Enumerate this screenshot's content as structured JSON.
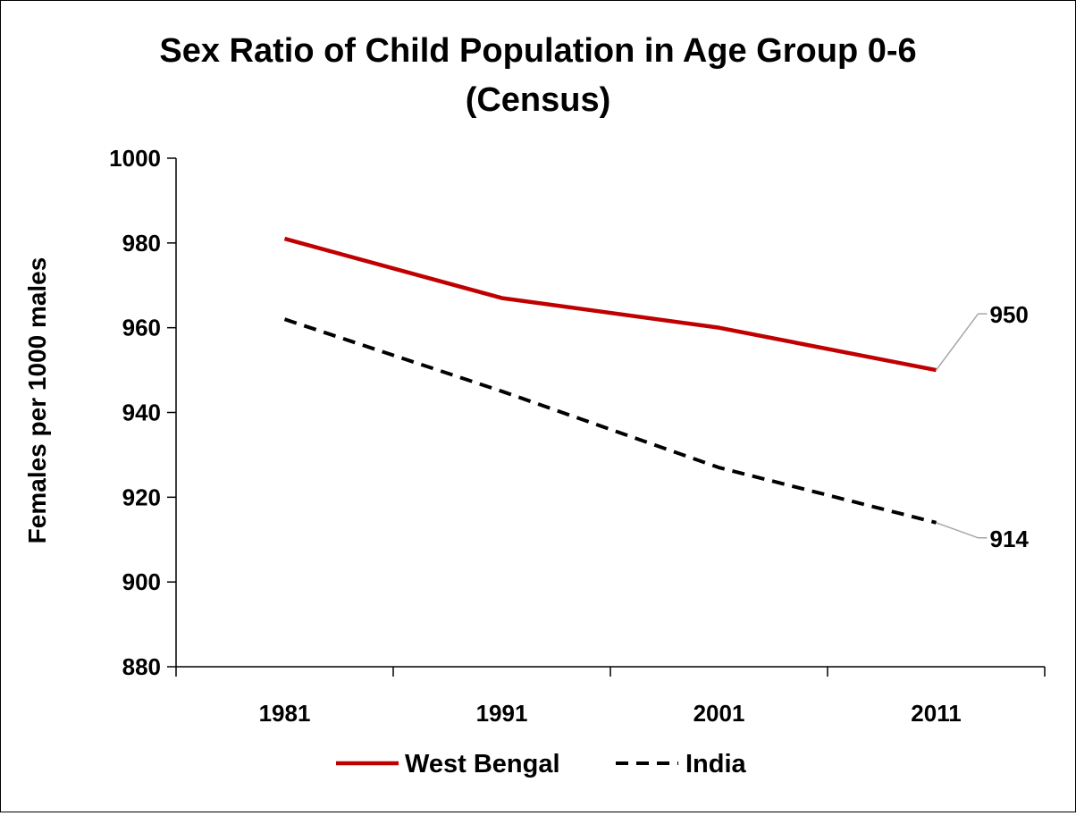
{
  "chart_data": {
    "type": "line",
    "title_line1": "Sex Ratio of Child Population in Age Group 0-6",
    "title_line2": "(Census)",
    "xlabel": "",
    "ylabel": "Females per 1000 males",
    "categories": [
      "1981",
      "1991",
      "2001",
      "2011"
    ],
    "ylim": [
      880,
      1000
    ],
    "yticks": [
      "880",
      "900",
      "920",
      "940",
      "960",
      "980",
      "1000"
    ],
    "grid": false,
    "legend_position": "bottom",
    "series": [
      {
        "name": "West Bengal",
        "values": [
          981,
          967,
          960,
          950
        ],
        "color": "#c00000",
        "dash": "solid",
        "end_label": "950"
      },
      {
        "name": "India",
        "values": [
          962,
          945,
          927,
          914
        ],
        "color": "#000000",
        "dash": "dashed",
        "end_label": "914"
      }
    ]
  }
}
